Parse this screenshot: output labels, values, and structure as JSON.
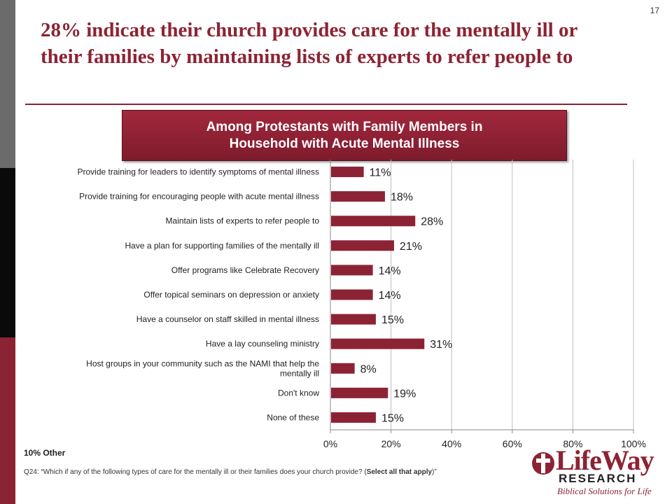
{
  "page_number": "17",
  "title": "28% indicate their church provides care for the mentally ill or their families by maintaining lists of experts to refer people to",
  "subtitle_line1": "Among Protestants with Family Members in",
  "subtitle_line2": "Household with Acute Mental Illness",
  "footnote_other": "10% Other",
  "question_text": "Q24: “Which if any of the following types of care for the mentally ill or their families does your church provide? (",
  "question_bold": "Select all that apply",
  "question_end": ")”",
  "logo": {
    "word": "LifeWay",
    "sub": "RESEARCH",
    "tagline": "Biblical Solutions for Life"
  },
  "colors": {
    "accent": "#8c2334",
    "bar": "#8c2334",
    "grid": "#bfbfbf"
  },
  "chart_data": {
    "type": "bar",
    "orientation": "horizontal",
    "categories": [
      "Provide training for leaders to identify symptoms of mental illness",
      "Provide training for encouraging people with acute mental illness",
      "Maintain lists of experts to refer people to",
      "Have a plan for supporting families of the mentally ill",
      "Offer programs like Celebrate Recovery",
      "Offer topical seminars on depression or anxiety",
      "Have a counselor on staff skilled in mental illness",
      "Have a lay counseling ministry",
      "Host groups in your community such as the NAMI that help the mentally ill",
      "Don't know",
      "None of these"
    ],
    "values": [
      11,
      18,
      28,
      21,
      14,
      14,
      15,
      31,
      8,
      19,
      15
    ],
    "data_labels": [
      "11%",
      "18%",
      "28%",
      "21%",
      "14%",
      "14%",
      "15%",
      "31%",
      "8%",
      "19%",
      "15%"
    ],
    "xlim": [
      0,
      100
    ],
    "x_ticks": [
      "0%",
      "20%",
      "40%",
      "60%",
      "80%",
      "100%"
    ],
    "grid": true,
    "legend": "none"
  }
}
